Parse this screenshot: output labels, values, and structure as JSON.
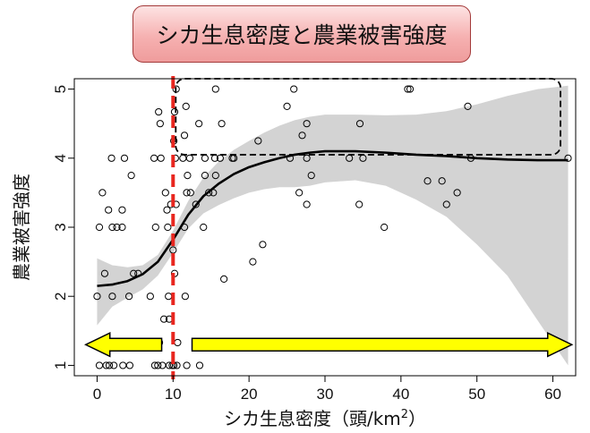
{
  "chart_data": {
    "type": "scatter",
    "title": "シカ生息密度と農業被害強度",
    "xlabel_main": "シカ生息密度（頭/km",
    "xlabel_sup": "2",
    "xlabel_close": "）",
    "ylabel": "農業被害強度",
    "xlim": [
      -3,
      63
    ],
    "ylim": [
      0.85,
      5.15
    ],
    "x_ticks": [
      0,
      10,
      20,
      30,
      40,
      50,
      60
    ],
    "y_ticks": [
      1,
      2,
      3,
      4,
      5
    ],
    "grid": false,
    "colors": {
      "points": "#000000",
      "smooth": "#000000",
      "band": "#d3d3d3",
      "threshold": "#e8261f",
      "arrow_fill": "#ffff00",
      "arrow_stroke": "#000000"
    },
    "threshold_x": 10,
    "points": [
      [
        0.3,
        1
      ],
      [
        1.2,
        1
      ],
      [
        1.6,
        1
      ],
      [
        2.2,
        1
      ],
      [
        3.4,
        1
      ],
      [
        4.3,
        1
      ],
      [
        7.6,
        1
      ],
      [
        8.0,
        1
      ],
      [
        8.6,
        1
      ],
      [
        9.5,
        1
      ],
      [
        9.9,
        1
      ],
      [
        10.1,
        1
      ],
      [
        10.5,
        1
      ],
      [
        11.8,
        1
      ],
      [
        13.5,
        1
      ],
      [
        8.2,
        1.33
      ],
      [
        10.6,
        1.33
      ],
      [
        9.5,
        1.67
      ],
      [
        8.8,
        1.67
      ],
      [
        0.0,
        2
      ],
      [
        2.0,
        2
      ],
      [
        4.2,
        2
      ],
      [
        7.0,
        2
      ],
      [
        9.4,
        2
      ],
      [
        11.6,
        2
      ],
      [
        10.2,
        2.33
      ],
      [
        16.7,
        2.25
      ],
      [
        20.5,
        2.5
      ],
      [
        21.8,
        2.75
      ],
      [
        4.8,
        2.33
      ],
      [
        5.4,
        2.33
      ],
      [
        1.0,
        2.33
      ],
      [
        10.0,
        2.67
      ],
      [
        0.3,
        3
      ],
      [
        2.0,
        3
      ],
      [
        2.6,
        3
      ],
      [
        3.3,
        3
      ],
      [
        7.7,
        3
      ],
      [
        9.3,
        3
      ],
      [
        11.5,
        3
      ],
      [
        14.0,
        3
      ],
      [
        37.8,
        3
      ],
      [
        1.5,
        3.25
      ],
      [
        3.3,
        3.25
      ],
      [
        9.2,
        3.25
      ],
      [
        9.7,
        3.33
      ],
      [
        10.4,
        3.33
      ],
      [
        13.0,
        3.33
      ],
      [
        27.6,
        3.33
      ],
      [
        34.5,
        3.33
      ],
      [
        0.7,
        3.5
      ],
      [
        9.0,
        3.5
      ],
      [
        11.8,
        3.5
      ],
      [
        12.3,
        3.5
      ],
      [
        14.7,
        3.5
      ],
      [
        15.3,
        3.5
      ],
      [
        26.6,
        3.5
      ],
      [
        47.4,
        3.5
      ],
      [
        4.5,
        3.75
      ],
      [
        11.9,
        3.75
      ],
      [
        14.2,
        3.75
      ],
      [
        15.6,
        3.75
      ],
      [
        28.2,
        3.75
      ],
      [
        43.5,
        3.67
      ],
      [
        45.4,
        3.67
      ],
      [
        46.0,
        3.33
      ],
      [
        1.9,
        4
      ],
      [
        3.6,
        4
      ],
      [
        7.5,
        4
      ],
      [
        8.4,
        4
      ],
      [
        10.3,
        4
      ],
      [
        11.3,
        4
      ],
      [
        12.2,
        4
      ],
      [
        14.2,
        4
      ],
      [
        15.5,
        4
      ],
      [
        16.2,
        4
      ],
      [
        17.8,
        4
      ],
      [
        18.0,
        4
      ],
      [
        25.4,
        4
      ],
      [
        27.6,
        4
      ],
      [
        33.2,
        4
      ],
      [
        35.0,
        4
      ],
      [
        49.2,
        4
      ],
      [
        62.0,
        4
      ],
      [
        10.1,
        4.25
      ],
      [
        21.2,
        4.25
      ],
      [
        27.0,
        4.33
      ],
      [
        11.5,
        4.33
      ],
      [
        13.4,
        4.5
      ],
      [
        16.4,
        4.5
      ],
      [
        27.6,
        4.5
      ],
      [
        34.6,
        4.5
      ],
      [
        8.3,
        4.5
      ],
      [
        11.7,
        4.75
      ],
      [
        25.0,
        4.75
      ],
      [
        48.8,
        4.75
      ],
      [
        8.1,
        4.67
      ],
      [
        10.2,
        4.67
      ],
      [
        10.4,
        5
      ],
      [
        15.6,
        5
      ],
      [
        25.9,
        5
      ],
      [
        40.9,
        5
      ],
      [
        41.2,
        5
      ]
    ],
    "smooth_curve": [
      [
        0,
        2.15
      ],
      [
        2,
        2.17
      ],
      [
        4,
        2.22
      ],
      [
        6,
        2.32
      ],
      [
        8,
        2.5
      ],
      [
        10,
        2.82
      ],
      [
        12,
        3.18
      ],
      [
        14,
        3.45
      ],
      [
        16,
        3.63
      ],
      [
        18,
        3.77
      ],
      [
        20,
        3.87
      ],
      [
        22,
        3.94
      ],
      [
        24,
        4.0
      ],
      [
        26,
        4.05
      ],
      [
        28,
        4.08
      ],
      [
        30,
        4.1
      ],
      [
        34,
        4.1
      ],
      [
        38,
        4.08
      ],
      [
        42,
        4.05
      ],
      [
        46,
        4.03
      ],
      [
        50,
        4.0
      ],
      [
        54,
        3.98
      ],
      [
        58,
        3.97
      ],
      [
        62,
        3.97
      ]
    ],
    "band_upper": [
      [
        0,
        2.55
      ],
      [
        2,
        2.45
      ],
      [
        4,
        2.42
      ],
      [
        6,
        2.45
      ],
      [
        8,
        2.6
      ],
      [
        10,
        2.95
      ],
      [
        12,
        3.38
      ],
      [
        14,
        3.72
      ],
      [
        16,
        3.95
      ],
      [
        18,
        4.12
      ],
      [
        20,
        4.25
      ],
      [
        22,
        4.37
      ],
      [
        24,
        4.47
      ],
      [
        26,
        4.55
      ],
      [
        28,
        4.6
      ],
      [
        30,
        4.63
      ],
      [
        34,
        4.63
      ],
      [
        38,
        4.62
      ],
      [
        42,
        4.63
      ],
      [
        46,
        4.68
      ],
      [
        50,
        4.78
      ],
      [
        54,
        4.9
      ],
      [
        58,
        5.0
      ],
      [
        62,
        5.05
      ]
    ],
    "band_lower": [
      [
        0,
        1.58
      ],
      [
        2,
        1.85
      ],
      [
        4,
        1.98
      ],
      [
        6,
        2.1
      ],
      [
        8,
        2.3
      ],
      [
        10,
        2.63
      ],
      [
        12,
        2.98
      ],
      [
        14,
        3.2
      ],
      [
        16,
        3.32
      ],
      [
        18,
        3.42
      ],
      [
        20,
        3.5
      ],
      [
        22,
        3.55
      ],
      [
        24,
        3.58
      ],
      [
        26,
        3.58
      ],
      [
        28,
        3.6
      ],
      [
        30,
        3.65
      ],
      [
        34,
        3.68
      ],
      [
        38,
        3.6
      ],
      [
        42,
        3.4
      ],
      [
        46,
        3.15
      ],
      [
        50,
        2.75
      ],
      [
        54,
        2.3
      ],
      [
        58,
        1.65
      ],
      [
        62,
        1.0
      ]
    ],
    "dashed_region": {
      "x": [
        10,
        61
      ],
      "y": [
        4.05,
        5.15
      ]
    },
    "arrows": [
      {
        "direction": "left",
        "from_x": 8.5,
        "to_x": -1.5,
        "y": 1.3
      },
      {
        "direction": "right",
        "from_x": 12.5,
        "to_x": 62.5,
        "y": 1.3
      }
    ]
  }
}
